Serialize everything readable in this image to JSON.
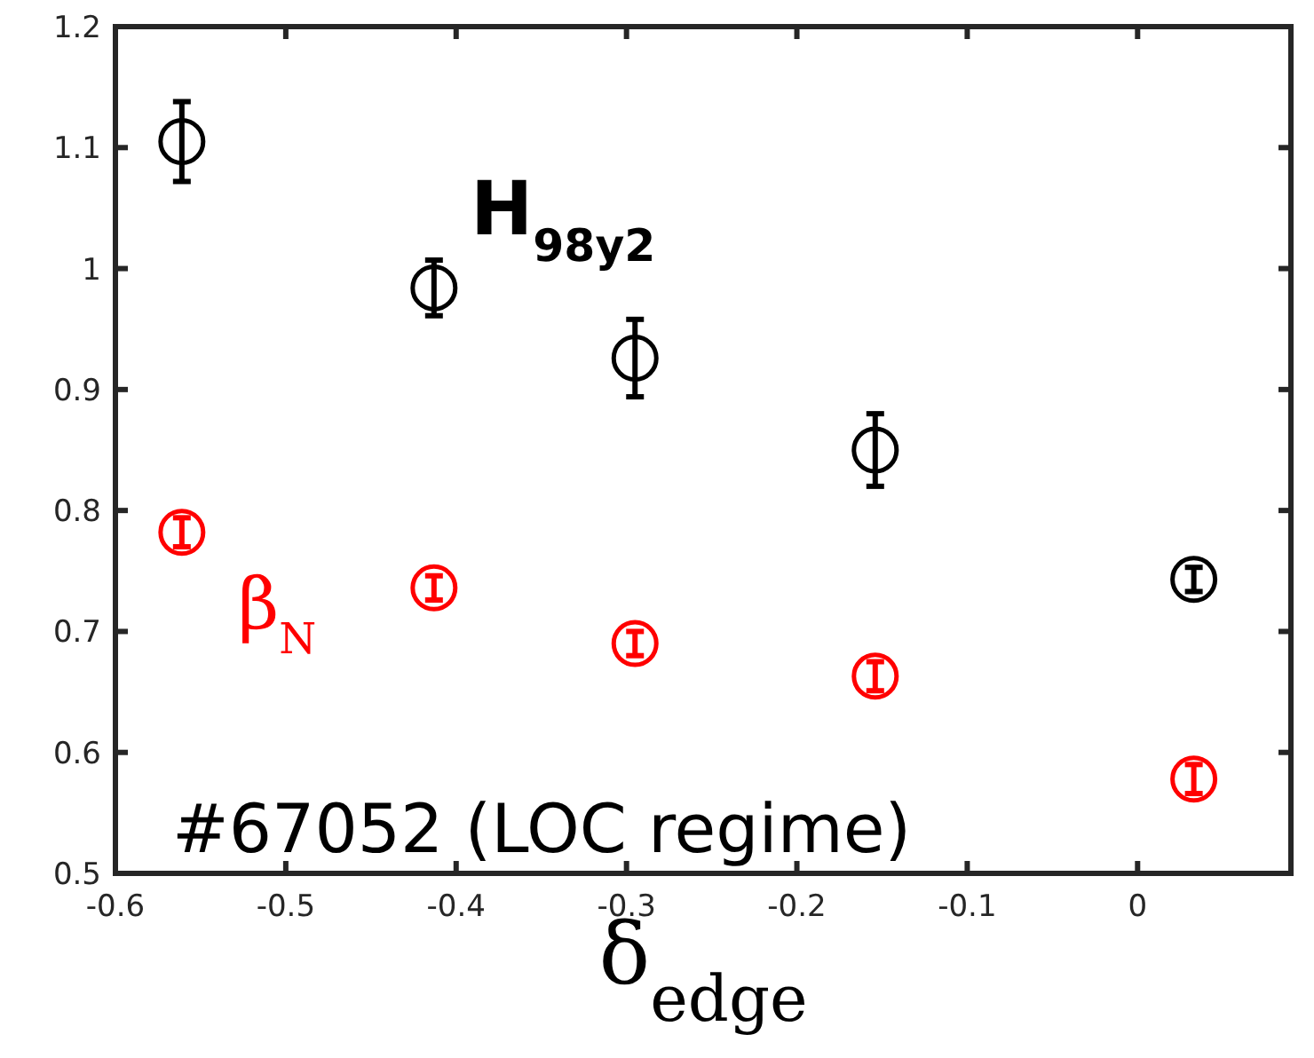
{
  "chart_data": {
    "type": "scatter",
    "xlabel": "δ$_{edge}$",
    "x": [
      -0.561,
      -0.413,
      -0.295,
      -0.154,
      0.033
    ],
    "series": [
      {
        "name": "H$_{98y2}$",
        "color": "#000000",
        "values": [
          1.105,
          0.984,
          0.926,
          0.85,
          0.743
        ],
        "errors": [
          0.033,
          0.023,
          0.032,
          0.03,
          0.01
        ]
      },
      {
        "name": "β$_{N}$",
        "color": "#ff0000",
        "values": [
          0.782,
          0.736,
          0.69,
          0.663,
          0.578
        ],
        "errors": [
          0.012,
          0.01,
          0.01,
          0.012,
          0.012
        ]
      }
    ],
    "annotations": [
      "#67052 (LOC regime)"
    ],
    "xlim": [
      -0.6,
      0.09
    ],
    "xticks": [
      -0.6,
      -0.5,
      -0.4,
      -0.3,
      -0.2,
      -0.1,
      0
    ],
    "ylim": [
      0.5,
      1.2
    ],
    "yticks": [
      0.5,
      0.6,
      0.7,
      0.8,
      0.9,
      1,
      1.1,
      1.2
    ],
    "marker": "circle",
    "grid": false
  }
}
